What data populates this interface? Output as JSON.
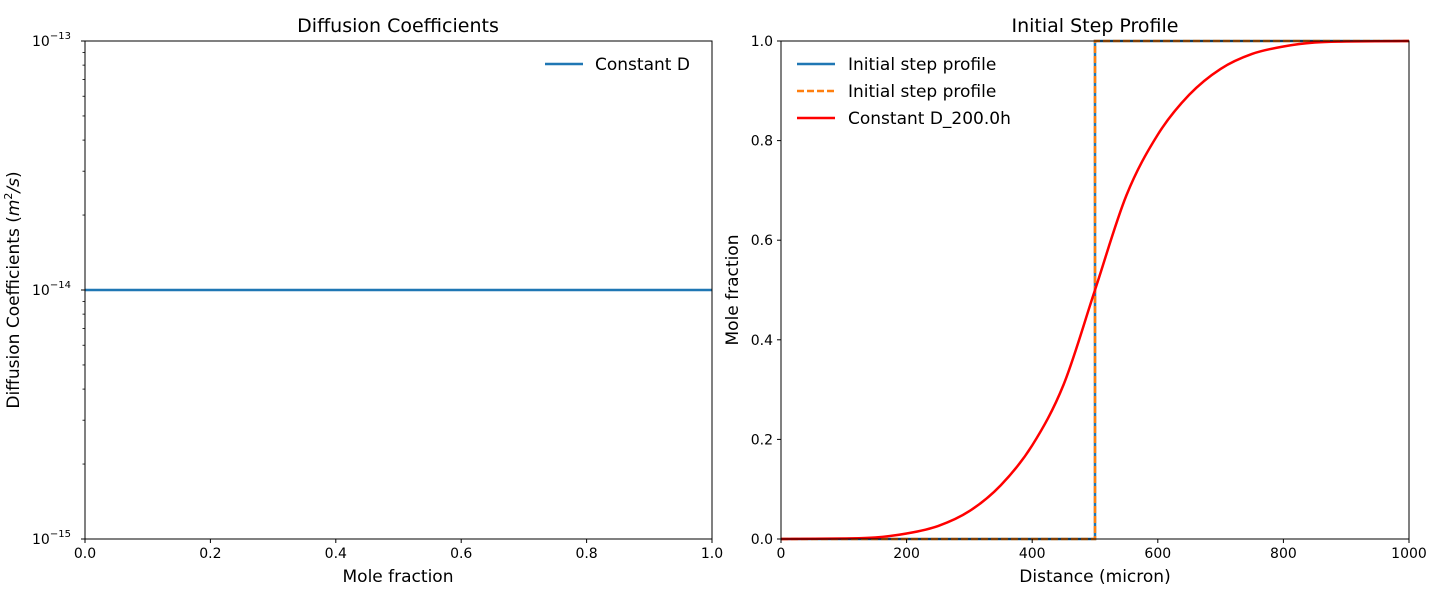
{
  "chart_data": [
    {
      "type": "line",
      "title": "Diffusion Coefficients",
      "xlabel": "Mole fraction",
      "ylabel_main": "Diffusion Coefficients (",
      "ylabel_m": "m",
      "ylabel_exp": "2",
      "ylabel_s": "/s",
      "ylabel_close": ")",
      "xlim": [
        0,
        1
      ],
      "ylim": [
        1e-15,
        1e-13
      ],
      "yscale": "log",
      "xticks": [
        0.0,
        0.2,
        0.4,
        0.6,
        0.8,
        1.0
      ],
      "xtick_labels": [
        "0.0",
        "0.2",
        "0.4",
        "0.6",
        "0.8",
        "1.0"
      ],
      "ytick_labels": [
        {
          "base": "10",
          "exp": "−13",
          "value": 1e-13
        },
        {
          "base": "10",
          "exp": "−14",
          "value": 1e-14
        },
        {
          "base": "10",
          "exp": "−15",
          "value": 1e-15
        }
      ],
      "legend_position": "upper-right",
      "series": [
        {
          "name": "Constant D",
          "color": "#1f77b4",
          "style": "solid",
          "x": [
            0,
            1
          ],
          "y": [
            1e-14,
            1e-14
          ]
        }
      ]
    },
    {
      "type": "line",
      "title": "Initial Step Profile",
      "xlabel": "Distance (micron)",
      "ylabel": "Mole fraction",
      "xlim": [
        0,
        1000
      ],
      "ylim": [
        0,
        1
      ],
      "xticks": [
        0,
        200,
        400,
        600,
        800,
        1000
      ],
      "xtick_labels": [
        "0",
        "200",
        "400",
        "600",
        "800",
        "1000"
      ],
      "yticks": [
        0.0,
        0.2,
        0.4,
        0.6,
        0.8,
        1.0
      ],
      "ytick_labels": [
        "0.0",
        "0.2",
        "0.4",
        "0.6",
        "0.8",
        "1.0"
      ],
      "legend_position": "upper-left",
      "series": [
        {
          "name": "Initial step profile",
          "color": "#1f77b4",
          "style": "solid",
          "x": [
            0,
            500,
            500,
            1000
          ],
          "y": [
            0,
            0,
            1,
            1
          ]
        },
        {
          "name": "Initial step profile",
          "color": "#ff7f0e",
          "style": "dashed",
          "x": [
            0,
            500,
            500,
            1000
          ],
          "y": [
            0,
            0,
            1,
            1
          ]
        },
        {
          "name": "Constant D_200.0h",
          "color": "#ff0000",
          "style": "solid",
          "x": [
            0,
            100,
            150,
            200,
            250,
            300,
            350,
            400,
            450,
            500,
            550,
            600,
            650,
            700,
            750,
            800,
            850,
            900,
            1000
          ],
          "y": [
            0.0,
            0.001,
            0.003,
            0.011,
            0.026,
            0.056,
            0.108,
            0.188,
            0.31,
            0.5,
            0.69,
            0.812,
            0.892,
            0.944,
            0.974,
            0.989,
            0.997,
            0.999,
            1.0
          ]
        }
      ]
    }
  ]
}
